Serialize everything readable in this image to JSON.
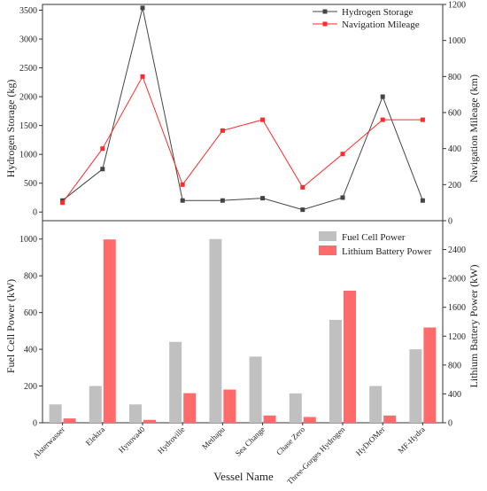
{
  "chart_data": [
    {
      "type": "line",
      "categories": [
        "Alsterwasser",
        "Elektra",
        "Hynova40",
        "Hydroville",
        "Methapu",
        "Sea Change",
        "Chase Zero",
        "Three-Gorges Hydrogen",
        "HyDrOMer",
        "MF-Hydra"
      ],
      "series": [
        {
          "name": "Hydrogen Storage",
          "axis": "left",
          "color": "#444444",
          "marker": "square",
          "values": [
            200,
            745,
            3540,
            200,
            200,
            240,
            40,
            250,
            2000,
            200
          ]
        },
        {
          "name": "Navigation Mileage",
          "axis": "right",
          "color": "#ff2a2a",
          "marker": "square",
          "values": [
            100,
            400,
            800,
            200,
            500,
            560,
            185,
            370,
            560,
            560
          ]
        }
      ],
      "ylabel": "Hydrogen Storage (kg)",
      "ylim": [
        -150,
        3600
      ],
      "yticks": [
        0,
        500,
        1000,
        1500,
        2000,
        2500,
        3000,
        3500
      ],
      "y2label": "Navigation Mileage (km)",
      "y2lim": [
        0,
        1200
      ],
      "y2ticks": [
        0,
        200,
        400,
        600,
        800,
        1000,
        1200
      ],
      "legend": "top-right"
    },
    {
      "type": "bar",
      "categories": [
        "Alsterwasser",
        "Elektra",
        "Hynova40",
        "Hydroville",
        "Methapu",
        "Sea Change",
        "Chase Zero",
        "Three-Gorges Hydrogen",
        "HyDrOMer",
        "MF-Hydra"
      ],
      "series": [
        {
          "name": "Fuel Cell Power",
          "axis": "left",
          "color": "#c0c0c0",
          "values": [
            100,
            200,
            100,
            440,
            1000,
            360,
            160,
            560,
            200,
            400
          ]
        },
        {
          "name": "Lithium Battery Power",
          "axis": "right",
          "color": "#ff6b6b",
          "values": [
            60,
            2540,
            40,
            410,
            460,
            100,
            80,
            1830,
            100,
            1320
          ]
        }
      ],
      "ylabel": "Fuel Cell Power (kW)",
      "ylim": [
        0,
        1100
      ],
      "yticks": [
        0,
        200,
        400,
        600,
        800,
        1000
      ],
      "y2label": "Lithium Battery Power (kW)",
      "y2lim": [
        0,
        2800
      ],
      "y2ticks": [
        0,
        400,
        800,
        1200,
        1600,
        2000,
        2400
      ],
      "xlabel": "Vessel Name",
      "legend": "top-right"
    }
  ]
}
